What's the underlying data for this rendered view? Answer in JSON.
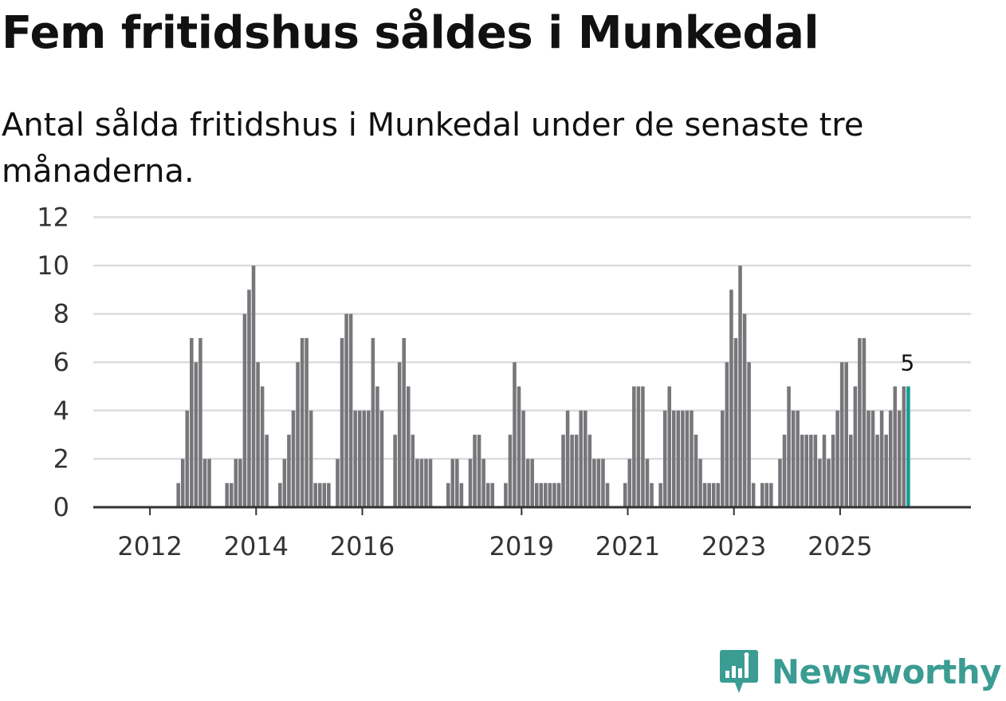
{
  "header": {
    "title": "Fem fritidshus såldes i Munkedal",
    "subtitle": "Antal sålda fritidshus i Munkedal under de senaste tre månaderna."
  },
  "brand": {
    "name": "Newsworthy"
  },
  "colors": {
    "bar": "#77777b",
    "highlight": "#149c94",
    "grid": "#dcdcdc",
    "axis": "#333333",
    "brand": "#3a9c92"
  },
  "chart_data": {
    "type": "bar",
    "title": "Fem fritidshus såldes i Munkedal",
    "subtitle": "Antal sålda fritidshus i Munkedal under de senaste tre månaderna.",
    "xlabel": "",
    "ylabel": "",
    "ylim": [
      0,
      12
    ],
    "yticks": [
      "0",
      "2",
      "4",
      "6",
      "8",
      "10",
      "12"
    ],
    "start_month": "2011-07",
    "xticks": [
      {
        "label": "2012",
        "month": "2012-01"
      },
      {
        "label": "2014",
        "month": "2014-01"
      },
      {
        "label": "2016",
        "month": "2016-01"
      },
      {
        "label": "2019",
        "month": "2019-01"
      },
      {
        "label": "2021",
        "month": "2021-01"
      },
      {
        "label": "2023",
        "month": "2023-01"
      },
      {
        "label": "2025",
        "month": "2025-01"
      }
    ],
    "values": [
      0,
      0,
      0,
      0,
      0,
      0,
      0,
      0,
      0,
      0,
      0,
      0,
      1,
      2,
      4,
      7,
      6,
      7,
      2,
      2,
      0,
      0,
      0,
      1,
      1,
      2,
      2,
      8,
      9,
      10,
      6,
      5,
      3,
      0,
      0,
      1,
      2,
      3,
      4,
      6,
      7,
      7,
      4,
      1,
      1,
      1,
      1,
      0,
      2,
      7,
      8,
      8,
      4,
      4,
      4,
      4,
      7,
      5,
      4,
      0,
      0,
      3,
      6,
      7,
      5,
      3,
      2,
      2,
      2,
      2,
      0,
      0,
      0,
      1,
      2,
      2,
      1,
      0,
      2,
      3,
      3,
      2,
      1,
      1,
      0,
      0,
      1,
      3,
      6,
      5,
      4,
      2,
      2,
      1,
      1,
      1,
      1,
      1,
      1,
      3,
      4,
      3,
      3,
      4,
      4,
      3,
      2,
      2,
      2,
      1,
      0,
      0,
      0,
      1,
      2,
      5,
      5,
      5,
      2,
      1,
      0,
      1,
      4,
      5,
      4,
      4,
      4,
      4,
      4,
      3,
      2,
      1,
      1,
      1,
      1,
      4,
      6,
      9,
      7,
      10,
      8,
      6,
      1,
      0,
      1,
      1,
      1,
      0,
      2,
      3,
      5,
      4,
      4,
      3,
      3,
      3,
      3,
      2,
      3,
      2,
      3,
      4,
      6,
      6,
      3,
      5,
      7,
      7,
      4,
      4,
      3,
      4,
      3,
      4,
      5,
      4,
      5,
      5
    ],
    "highlight_last": true,
    "annotation": "5"
  }
}
